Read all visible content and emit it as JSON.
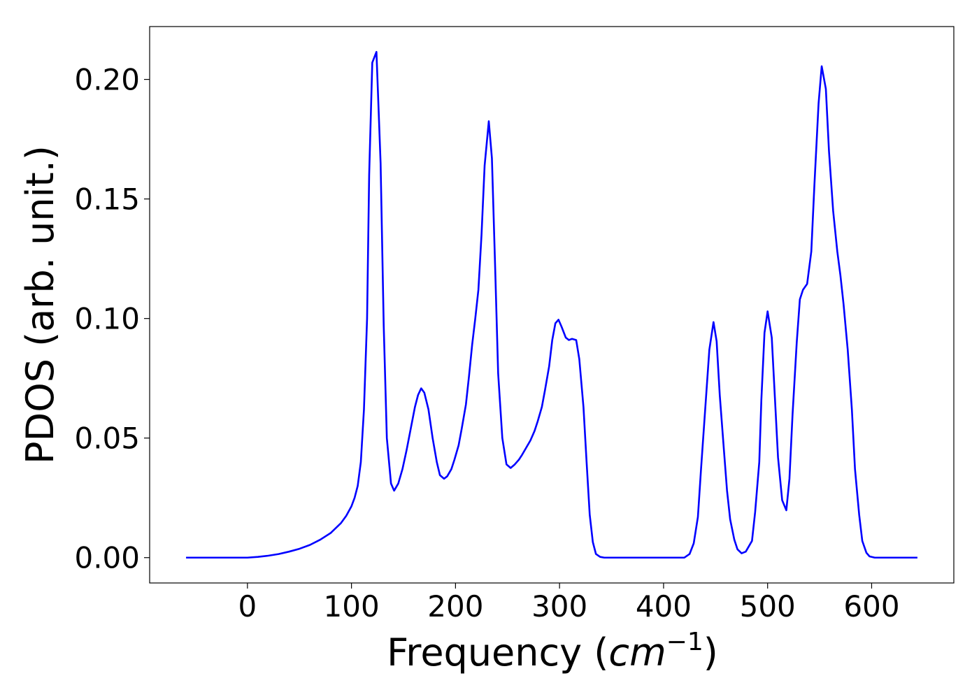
{
  "chart_data": {
    "type": "line",
    "xlabel": [
      "Frequency (",
      "cm",
      "−1",
      ")"
    ],
    "ylabel": "PDOS (arb. unit.)",
    "xlim": [
      -94,
      679
    ],
    "ylim": [
      -0.0106,
      0.2221
    ],
    "xticks": [
      0,
      100,
      200,
      300,
      400,
      500,
      600
    ],
    "yticks": [
      {
        "value": 0,
        "label": "0.00"
      },
      {
        "value": 0.05,
        "label": "0.05"
      },
      {
        "value": 0.1,
        "label": "0.10"
      },
      {
        "value": 0.15,
        "label": "0.15"
      },
      {
        "value": 0.2,
        "label": "0.20"
      }
    ],
    "grid": false,
    "series": [
      {
        "color": "#0000ff",
        "x": [
          -59,
          -30,
          0,
          10,
          20,
          30,
          40,
          50,
          60,
          70,
          80,
          90,
          95,
          100,
          103,
          106,
          109,
          112,
          115,
          117,
          120,
          124,
          128,
          131,
          134,
          138,
          141,
          145,
          149,
          153,
          157,
          161,
          164,
          167,
          170,
          174,
          178,
          182,
          185,
          189,
          192,
          196,
          199,
          203,
          206,
          210,
          213,
          216,
          219,
          222,
          225,
          228,
          232,
          235,
          238,
          241,
          245,
          249,
          253,
          257,
          261,
          264,
          268,
          272,
          276,
          279,
          283,
          286,
          290,
          293,
          296,
          299,
          302,
          306,
          309,
          312,
          316,
          319,
          323,
          326,
          329,
          332,
          335,
          339,
          343,
          380,
          420,
          425,
          429,
          433,
          436,
          440,
          444,
          448,
          451,
          454,
          458,
          461,
          464,
          468,
          471,
          475,
          479,
          485,
          488,
          492,
          494,
          497,
          500,
          504,
          507,
          510,
          514,
          518,
          521,
          524,
          528,
          531,
          534,
          538,
          542,
          545,
          549,
          552,
          556,
          559,
          563,
          567,
          570,
          573,
          577,
          581,
          584,
          588,
          591,
          595,
          598,
          603,
          644
        ],
        "values": [
          0,
          0,
          0,
          0.0003,
          0.0008,
          0.0015,
          0.0025,
          0.0037,
          0.0053,
          0.0075,
          0.0103,
          0.0145,
          0.0175,
          0.0215,
          0.025,
          0.03,
          0.04,
          0.062,
          0.1,
          0.16,
          0.207,
          0.2115,
          0.165,
          0.097,
          0.05,
          0.031,
          0.028,
          0.031,
          0.037,
          0.045,
          0.054,
          0.063,
          0.068,
          0.0708,
          0.069,
          0.062,
          0.05,
          0.04,
          0.0345,
          0.033,
          0.034,
          0.037,
          0.041,
          0.047,
          0.054,
          0.064,
          0.076,
          0.089,
          0.1,
          0.112,
          0.135,
          0.164,
          0.1825,
          0.167,
          0.123,
          0.077,
          0.05,
          0.039,
          0.0375,
          0.039,
          0.041,
          0.043,
          0.046,
          0.049,
          0.053,
          0.057,
          0.063,
          0.07,
          0.08,
          0.091,
          0.098,
          0.0995,
          0.0965,
          0.092,
          0.091,
          0.0915,
          0.091,
          0.083,
          0.063,
          0.04,
          0.018,
          0.0065,
          0.0015,
          0.0003,
          0,
          0,
          0,
          0.0015,
          0.006,
          0.017,
          0.037,
          0.062,
          0.087,
          0.0985,
          0.0905,
          0.068,
          0.045,
          0.028,
          0.016,
          0.0075,
          0.0035,
          0.0018,
          0.0025,
          0.007,
          0.019,
          0.04,
          0.066,
          0.094,
          0.103,
          0.092,
          0.067,
          0.042,
          0.024,
          0.0198,
          0.033,
          0.06,
          0.09,
          0.108,
          0.112,
          0.1145,
          0.128,
          0.156,
          0.19,
          0.2055,
          0.196,
          0.17,
          0.145,
          0.128,
          0.118,
          0.106,
          0.087,
          0.062,
          0.037,
          0.018,
          0.007,
          0.002,
          0.0005,
          0,
          0
        ]
      }
    ]
  }
}
